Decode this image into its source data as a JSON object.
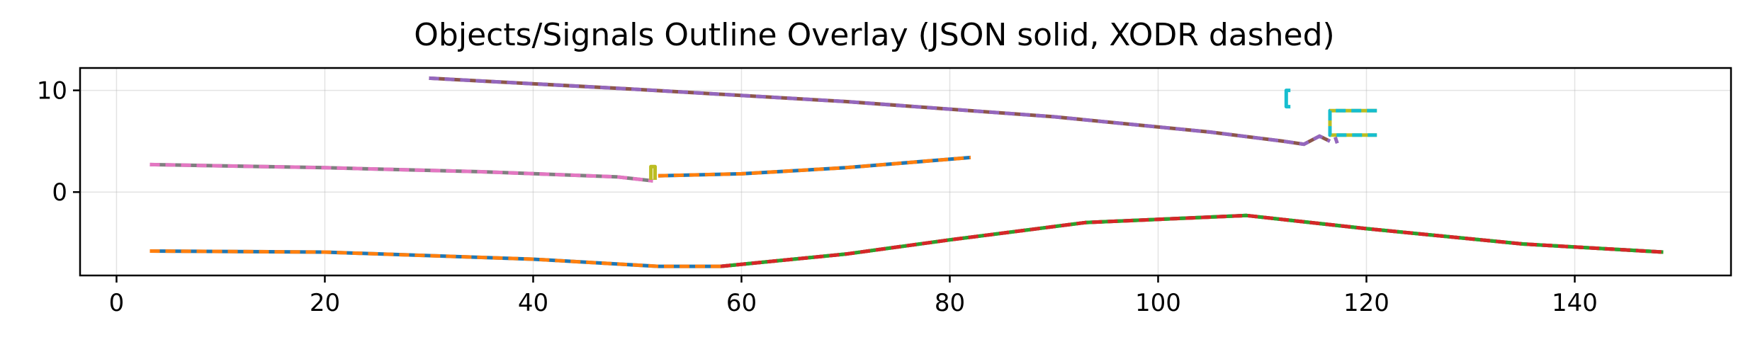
{
  "chart_data": {
    "type": "line",
    "title": "Objects/Signals Outline Overlay (JSON solid, XODR dashed)",
    "xlabel": "",
    "ylabel": "",
    "xlim": [
      -3.5,
      155
    ],
    "ylim": [
      -8.2,
      12.2
    ],
    "xticks": [
      0,
      20,
      40,
      60,
      80,
      100,
      120,
      140
    ],
    "yticks": [
      0,
      10
    ],
    "grid": true,
    "series": [
      {
        "color": "#1f77b4",
        "style": "solid",
        "x": [
          3.2,
          20,
          40,
          52,
          58,
          70,
          80,
          93,
          108.5,
          120,
          135,
          148.5
        ],
        "y": [
          -5.8,
          -5.9,
          -6.6,
          -7.3,
          -7.3,
          -6.1,
          -4.7,
          -3.0,
          -2.3,
          -3.6,
          -5.1,
          -5.9
        ]
      },
      {
        "color": "#ff7f0e",
        "style": "dashed",
        "x": [
          3.2,
          20,
          40,
          52,
          58,
          70,
          80,
          93,
          108.5,
          120,
          135,
          148.5
        ],
        "y": [
          -5.8,
          -5.9,
          -6.6,
          -7.3,
          -7.3,
          -6.1,
          -4.7,
          -3.0,
          -2.3,
          -3.6,
          -5.1,
          -5.9
        ]
      },
      {
        "color": "#2ca02c",
        "style": "solid",
        "x": [
          58,
          70,
          80,
          93,
          108.5,
          120,
          135,
          148.5
        ],
        "y": [
          -7.3,
          -6.1,
          -4.7,
          -3.0,
          -2.3,
          -3.6,
          -5.1,
          -5.9
        ]
      },
      {
        "color": "#d62728",
        "style": "dashed",
        "x": [
          58,
          70,
          80,
          93,
          108.5,
          120,
          135,
          148.5
        ],
        "y": [
          -7.3,
          -6.1,
          -4.7,
          -3.0,
          -2.3,
          -3.6,
          -5.1,
          -5.9
        ]
      },
      {
        "color": "#1f77b4",
        "style": "solid",
        "x": [
          52,
          60,
          70,
          82
        ],
        "y": [
          1.6,
          1.8,
          2.4,
          3.4
        ]
      },
      {
        "color": "#ff7f0e",
        "style": "dashed",
        "x": [
          52,
          60,
          70,
          82
        ],
        "y": [
          1.6,
          1.8,
          2.4,
          3.4
        ]
      },
      {
        "color": "#7f7f7f",
        "style": "solid",
        "x": [
          3.2,
          20,
          35,
          48,
          51.5
        ],
        "y": [
          2.7,
          2.4,
          2.0,
          1.5,
          1.1
        ]
      },
      {
        "color": "#e377c2",
        "style": "dashed",
        "x": [
          3.2,
          20,
          35,
          48,
          51.5
        ],
        "y": [
          2.7,
          2.4,
          2.0,
          1.5,
          1.1
        ]
      },
      {
        "color": "#8c564b",
        "style": "solid",
        "x": [
          30,
          50,
          70,
          90,
          105,
          112,
          114,
          115.5,
          116.5
        ],
        "y": [
          11.2,
          10.1,
          8.9,
          7.4,
          5.9,
          5.0,
          4.7,
          5.5,
          5.0
        ]
      },
      {
        "color": "#9467bd",
        "style": "dashed",
        "x": [
          30,
          50,
          70,
          90,
          105,
          112,
          114,
          115.5,
          116.5
        ],
        "y": [
          11.2,
          10.1,
          8.9,
          7.4,
          5.9,
          5.0,
          4.7,
          5.5,
          5.0
        ]
      },
      {
        "color": "#bcbd22",
        "style": "solid",
        "x": [
          51.3,
          51.3,
          51.7,
          51.7
        ],
        "y": [
          1.2,
          2.5,
          2.5,
          1.2
        ]
      },
      {
        "color": "#bcbd22",
        "style": "solid",
        "x": [
          121,
          116.5,
          116.5,
          121
        ],
        "y": [
          8.0,
          8.0,
          5.6,
          5.6
        ]
      },
      {
        "color": "#17becf",
        "style": "dashed",
        "x": [
          121,
          116.5,
          116.5,
          121
        ],
        "y": [
          8.0,
          8.0,
          5.6,
          5.6
        ]
      },
      {
        "color": "#17becf",
        "style": "solid",
        "x": [
          112.7,
          112.3,
          112.3,
          112.7
        ],
        "y": [
          10.0,
          10.0,
          8.4,
          8.4
        ]
      },
      {
        "color": "#9467bd",
        "style": "solid",
        "x": [
          117.0,
          117.2
        ],
        "y": [
          5.4,
          4.8
        ]
      }
    ]
  }
}
